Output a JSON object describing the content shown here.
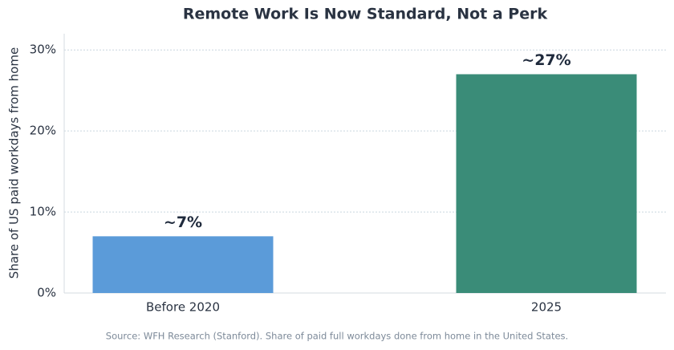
{
  "chart_data": {
    "type": "bar",
    "title": "Remote Work Is Now Standard, Not a Perk",
    "y_label": "Share of US paid workdays from home",
    "categories": [
      "Before 2020",
      "2025"
    ],
    "values": [
      7,
      27
    ],
    "value_labels": [
      "~7%",
      "~27%"
    ],
    "colors": [
      "#5b9bd9",
      "#3a8c78"
    ],
    "ylim": [
      0,
      32
    ],
    "yticks": [
      {
        "value": 0,
        "label": "0%"
      },
      {
        "value": 10,
        "label": "10%"
      },
      {
        "value": 20,
        "label": "20%"
      },
      {
        "value": 30,
        "label": "30%"
      }
    ],
    "grid": true,
    "source": "Source: WFH Research (Stanford). Share of paid full workdays done from home in the United States."
  }
}
